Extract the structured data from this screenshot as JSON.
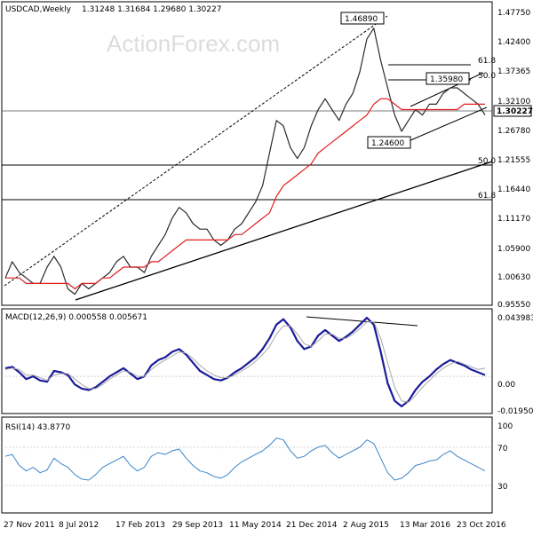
{
  "header": {
    "symbol": "USDCAD,Weekly",
    "ohlc": "1.31248 1.31684 1.29680 1.30227"
  },
  "watermark": "ActionForex.com",
  "colors": {
    "price_line": "#2b2b2b",
    "ma_line": "#e11d1d",
    "macd_line": "#1b1b9b",
    "signal_line": "#a8a8a8",
    "rsi_line": "#3a86c8",
    "grid": "#d9d9d9",
    "axis": "#000000"
  },
  "chart_data": [
    {
      "type": "line",
      "title": "USDCAD,Weekly",
      "x_labels": [
        "27 Nov 2011",
        "8 Jul 2012",
        "17 Feb 2013",
        "29 Sep 2013",
        "11 May 2014",
        "21 Dec 2014",
        "2 Aug 2015",
        "13 Mar 2016",
        "23 Oct 2016"
      ],
      "y_ticks": [
        "1.47750",
        "1.42400",
        "1.37365",
        "1.32100",
        "1.26780",
        "1.21555",
        "1.16440",
        "1.11170",
        "1.05900",
        "1.00630",
        "0.95550"
      ],
      "ylim": [
        0.953,
        1.502
      ],
      "current_price_label": "1.30227",
      "series": [
        {
          "name": "price",
          "values": [
            1.0,
            1.03,
            1.01,
            1.0,
            0.99,
            0.99,
            1.02,
            1.04,
            1.02,
            0.98,
            0.97,
            0.99,
            0.98,
            0.99,
            1.0,
            1.01,
            1.03,
            1.04,
            1.02,
            1.02,
            1.01,
            1.04,
            1.06,
            1.08,
            1.11,
            1.13,
            1.12,
            1.1,
            1.09,
            1.09,
            1.07,
            1.06,
            1.07,
            1.09,
            1.1,
            1.12,
            1.14,
            1.17,
            1.23,
            1.29,
            1.28,
            1.24,
            1.22,
            1.24,
            1.28,
            1.31,
            1.33,
            1.31,
            1.29,
            1.32,
            1.34,
            1.38,
            1.44,
            1.46,
            1.4,
            1.35,
            1.3,
            1.27,
            1.29,
            1.31,
            1.3,
            1.32,
            1.32,
            1.34,
            1.35,
            1.35,
            1.34,
            1.33,
            1.32,
            1.3
          ]
        },
        {
          "name": "ma",
          "values": [
            1.0,
            1.0,
            1.0,
            0.99,
            0.99,
            0.99,
            0.99,
            0.99,
            0.99,
            0.99,
            0.98,
            0.99,
            0.99,
            0.99,
            1.0,
            1.0,
            1.01,
            1.02,
            1.02,
            1.02,
            1.02,
            1.03,
            1.03,
            1.04,
            1.05,
            1.06,
            1.07,
            1.07,
            1.07,
            1.07,
            1.07,
            1.07,
            1.07,
            1.08,
            1.08,
            1.09,
            1.1,
            1.11,
            1.12,
            1.15,
            1.17,
            1.18,
            1.19,
            1.2,
            1.21,
            1.23,
            1.24,
            1.25,
            1.26,
            1.27,
            1.28,
            1.29,
            1.3,
            1.32,
            1.33,
            1.33,
            1.32,
            1.31,
            1.31,
            1.31,
            1.31,
            1.31,
            1.31,
            1.31,
            1.31,
            1.31,
            1.32,
            1.32,
            1.32,
            1.32
          ]
        }
      ],
      "annotations": [
        {
          "label": "1.46890",
          "value": 1.4689
        },
        {
          "label": "1.35980",
          "value": 1.3598
        },
        {
          "label": "1.24600",
          "value": 1.246
        }
      ],
      "fib_labels": [
        "61.8",
        "50.0",
        "50.0",
        "61.8"
      ]
    },
    {
      "type": "line",
      "title": "MACD(12,26,9) 0.000558 0.005671",
      "y_ticks": [
        "0.043983",
        "0.00",
        "-0.019501"
      ],
      "ylim": [
        -0.026,
        0.047
      ],
      "series": [
        {
          "name": "MACD",
          "values": [
            0.006,
            0.007,
            0.003,
            -0.002,
            0.0,
            -0.003,
            -0.004,
            0.004,
            0.003,
            0.001,
            -0.006,
            -0.009,
            -0.01,
            -0.008,
            -0.004,
            0.0,
            0.003,
            0.006,
            0.002,
            -0.002,
            0.0,
            0.008,
            0.012,
            0.014,
            0.018,
            0.02,
            0.016,
            0.01,
            0.004,
            0.001,
            -0.002,
            -0.003,
            -0.001,
            0.003,
            0.006,
            0.01,
            0.014,
            0.02,
            0.028,
            0.038,
            0.042,
            0.036,
            0.026,
            0.02,
            0.022,
            0.03,
            0.034,
            0.03,
            0.026,
            0.029,
            0.033,
            0.038,
            0.043,
            0.038,
            0.018,
            -0.005,
            -0.018,
            -0.022,
            -0.018,
            -0.01,
            -0.004,
            0.0,
            0.005,
            0.009,
            0.012,
            0.01,
            0.008,
            0.005,
            0.003,
            0.001
          ]
        },
        {
          "name": "Signal",
          "values": [
            0.005,
            0.006,
            0.005,
            0.001,
            0.001,
            -0.001,
            -0.003,
            0.001,
            0.002,
            0.002,
            -0.002,
            -0.006,
            -0.009,
            -0.009,
            -0.006,
            -0.002,
            0.001,
            0.004,
            0.003,
            0.0,
            0.0,
            0.005,
            0.009,
            0.012,
            0.015,
            0.018,
            0.017,
            0.013,
            0.008,
            0.004,
            0.001,
            -0.001,
            -0.001,
            0.001,
            0.004,
            0.007,
            0.011,
            0.016,
            0.022,
            0.031,
            0.037,
            0.037,
            0.031,
            0.024,
            0.022,
            0.026,
            0.031,
            0.031,
            0.028,
            0.028,
            0.031,
            0.035,
            0.04,
            0.04,
            0.028,
            0.01,
            -0.008,
            -0.018,
            -0.019,
            -0.014,
            -0.008,
            -0.003,
            0.002,
            0.006,
            0.009,
            0.011,
            0.009,
            0.007,
            0.005,
            0.006
          ]
        }
      ]
    },
    {
      "type": "line",
      "title": "RSI(14) 43.8770",
      "y_ticks": [
        "100",
        "70",
        "30"
      ],
      "ylim": [
        0,
        100
      ],
      "series": [
        {
          "name": "RSI",
          "values": [
            60,
            62,
            50,
            44,
            48,
            42,
            45,
            58,
            52,
            48,
            40,
            35,
            34,
            40,
            48,
            52,
            56,
            60,
            50,
            44,
            48,
            60,
            64,
            62,
            66,
            68,
            58,
            50,
            44,
            42,
            38,
            36,
            40,
            48,
            54,
            58,
            62,
            66,
            72,
            80,
            78,
            66,
            58,
            60,
            66,
            70,
            72,
            64,
            58,
            62,
            66,
            70,
            78,
            74,
            58,
            42,
            34,
            36,
            42,
            50,
            52,
            55,
            56,
            62,
            66,
            60,
            56,
            52,
            48,
            44
          ]
        }
      ]
    }
  ]
}
